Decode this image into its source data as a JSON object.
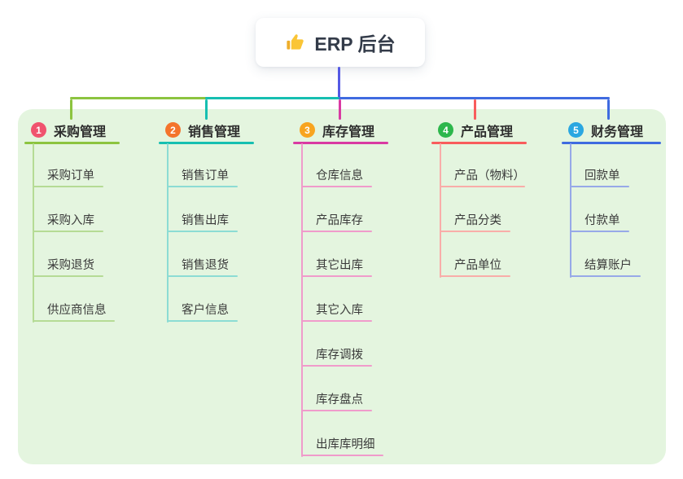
{
  "canvas": {
    "page_color": "#ffffff",
    "panel_color": "#e4f5df"
  },
  "root": {
    "title": "ERP 后台",
    "line_color": "#5459e4",
    "icon": "thumbs-up-icon"
  },
  "branches": [
    {
      "num": "1",
      "name": "采购管理",
      "badge_color": "#f0536e",
      "line_color": "#8cc43f",
      "child_line_color": "#b5db95",
      "children": [
        "采购订单",
        "采购入库",
        "采购退货",
        "供应商信息"
      ]
    },
    {
      "num": "2",
      "name": "销售管理",
      "badge_color": "#f4742c",
      "line_color": "#16bfb1",
      "child_line_color": "#8cdcd4",
      "children": [
        "销售订单",
        "销售出库",
        "销售退货",
        "客户信息"
      ]
    },
    {
      "num": "3",
      "name": "库存管理",
      "badge_color": "#f8a41f",
      "line_color": "#d93aa2",
      "child_line_color": "#f09bcb",
      "children": [
        "仓库信息",
        "产品库存",
        "其它出库",
        "其它入库",
        "库存调拨",
        "库存盘点",
        "出库库明细"
      ]
    },
    {
      "num": "4",
      "name": "产品管理",
      "badge_color": "#2db74c",
      "line_color": "#f85c5c",
      "child_line_color": "#f9ada9",
      "children": [
        "产品（物料）",
        "产品分类",
        "产品单位"
      ]
    },
    {
      "num": "5",
      "name": "财务管理",
      "badge_color": "#2aa7e1",
      "line_color": "#3f6be0",
      "child_line_color": "#97a9e8",
      "children": [
        "回款单",
        "付款单",
        "结算账户"
      ]
    }
  ]
}
